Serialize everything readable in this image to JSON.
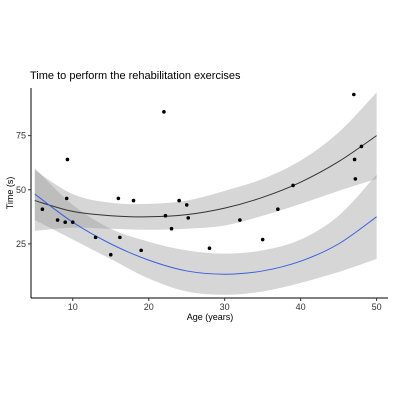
{
  "chart_data": {
    "type": "scatter",
    "title": "Time to perform the rehabilitation exercises",
    "xlabel": "Age (years)",
    "ylabel": "Time (s)",
    "xlim": [
      4.5,
      51.5
    ],
    "ylim": [
      0,
      97
    ],
    "x_ticks": [
      10,
      20,
      30,
      40,
      50
    ],
    "y_ticks": [
      25,
      50,
      75
    ],
    "grid": false,
    "points": [
      {
        "x": 6,
        "y": 41
      },
      {
        "x": 8,
        "y": 36
      },
      {
        "x": 9,
        "y": 35
      },
      {
        "x": 9.2,
        "y": 46
      },
      {
        "x": 9.3,
        "y": 64
      },
      {
        "x": 10,
        "y": 35
      },
      {
        "x": 13,
        "y": 28
      },
      {
        "x": 15,
        "y": 20
      },
      {
        "x": 16,
        "y": 46
      },
      {
        "x": 16.2,
        "y": 28
      },
      {
        "x": 18,
        "y": 45
      },
      {
        "x": 19,
        "y": 22
      },
      {
        "x": 22,
        "y": 86
      },
      {
        "x": 22.2,
        "y": 38
      },
      {
        "x": 23,
        "y": 32
      },
      {
        "x": 24,
        "y": 45
      },
      {
        "x": 25,
        "y": 43
      },
      {
        "x": 25.2,
        "y": 37
      },
      {
        "x": 28,
        "y": 23
      },
      {
        "x": 32,
        "y": 36
      },
      {
        "x": 35,
        "y": 27
      },
      {
        "x": 37,
        "y": 41
      },
      {
        "x": 39,
        "y": 52
      },
      {
        "x": 47,
        "y": 94
      },
      {
        "x": 47.1,
        "y": 64
      },
      {
        "x": 47.2,
        "y": 55
      },
      {
        "x": 48,
        "y": 70
      }
    ],
    "series": [
      {
        "type": "smooth-fit",
        "color": "#333333",
        "x": [
          5,
          10,
          15,
          20,
          25,
          30,
          35,
          40,
          45,
          50
        ],
        "fit": [
          45,
          40,
          38,
          37.5,
          38.5,
          41.5,
          46.5,
          53.5,
          63,
          75
        ],
        "lower": [
          31,
          32.5,
          32,
          31.5,
          32,
          33.5,
          38,
          43.5,
          49.5,
          55
        ],
        "upper": [
          59,
          48,
          44,
          43.5,
          45,
          49.5,
          55,
          63.5,
          76.5,
          95
        ]
      },
      {
        "type": "smooth-fit",
        "color": "#3a5fe0",
        "x": [
          5,
          10,
          15,
          20,
          25,
          30,
          35,
          40,
          45,
          50
        ],
        "fit": [
          48,
          35,
          25,
          17.5,
          12.5,
          11,
          12.5,
          17,
          25,
          37.5
        ],
        "lower": [
          36,
          27,
          18,
          9,
          3,
          1.5,
          3,
          7,
          12,
          18
        ],
        "upper": [
          60,
          43,
          32,
          26,
          22,
          20.5,
          22,
          27,
          38,
          57
        ]
      }
    ]
  }
}
